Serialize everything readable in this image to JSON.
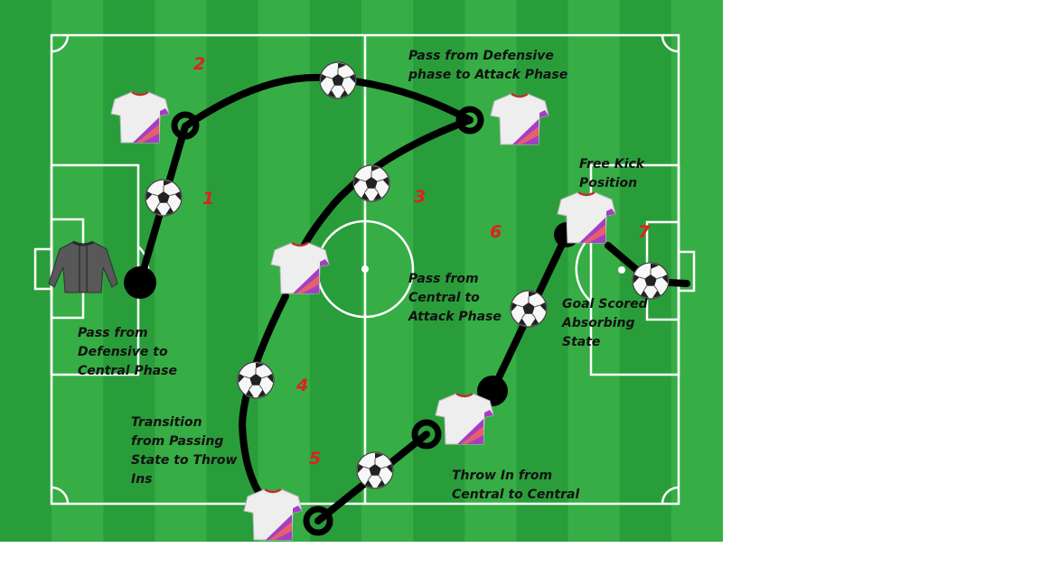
{
  "diagram": {
    "labels": {
      "pass_def_attack": "Pass from Defensive\nphase to Attack Phase",
      "pass_def_central": "Pass from\nDefensive to\nCentral Phase",
      "pass_central_attack": "Pass from\nCentral to\nAttack Phase",
      "free_kick": "Free Kick\nPosition",
      "goal_scored": "Goal Scored\nAbsorbing\nState",
      "transition_throw": "Transition\nfrom Passing\nState to Throw\nIns",
      "throw_in": "Throw In from\nCentral to Central"
    },
    "step_numbers": [
      "1",
      "2",
      "3",
      "4",
      "5",
      "6",
      "7"
    ],
    "colors": {
      "grass_light": "#36ad45",
      "grass_dark": "#2a9d3b",
      "lines": "#ffffff",
      "path": "#000000",
      "step_number": "#e0201c",
      "shirt_body": "#eeeeee",
      "shirt_stripe": "#a43fc4",
      "keeper_shirt": "#555555"
    },
    "icons": {
      "ball": "soccer-ball-icon",
      "player": "player-shirt-icon",
      "goalkeeper": "goalkeeper-shirt-icon"
    }
  }
}
